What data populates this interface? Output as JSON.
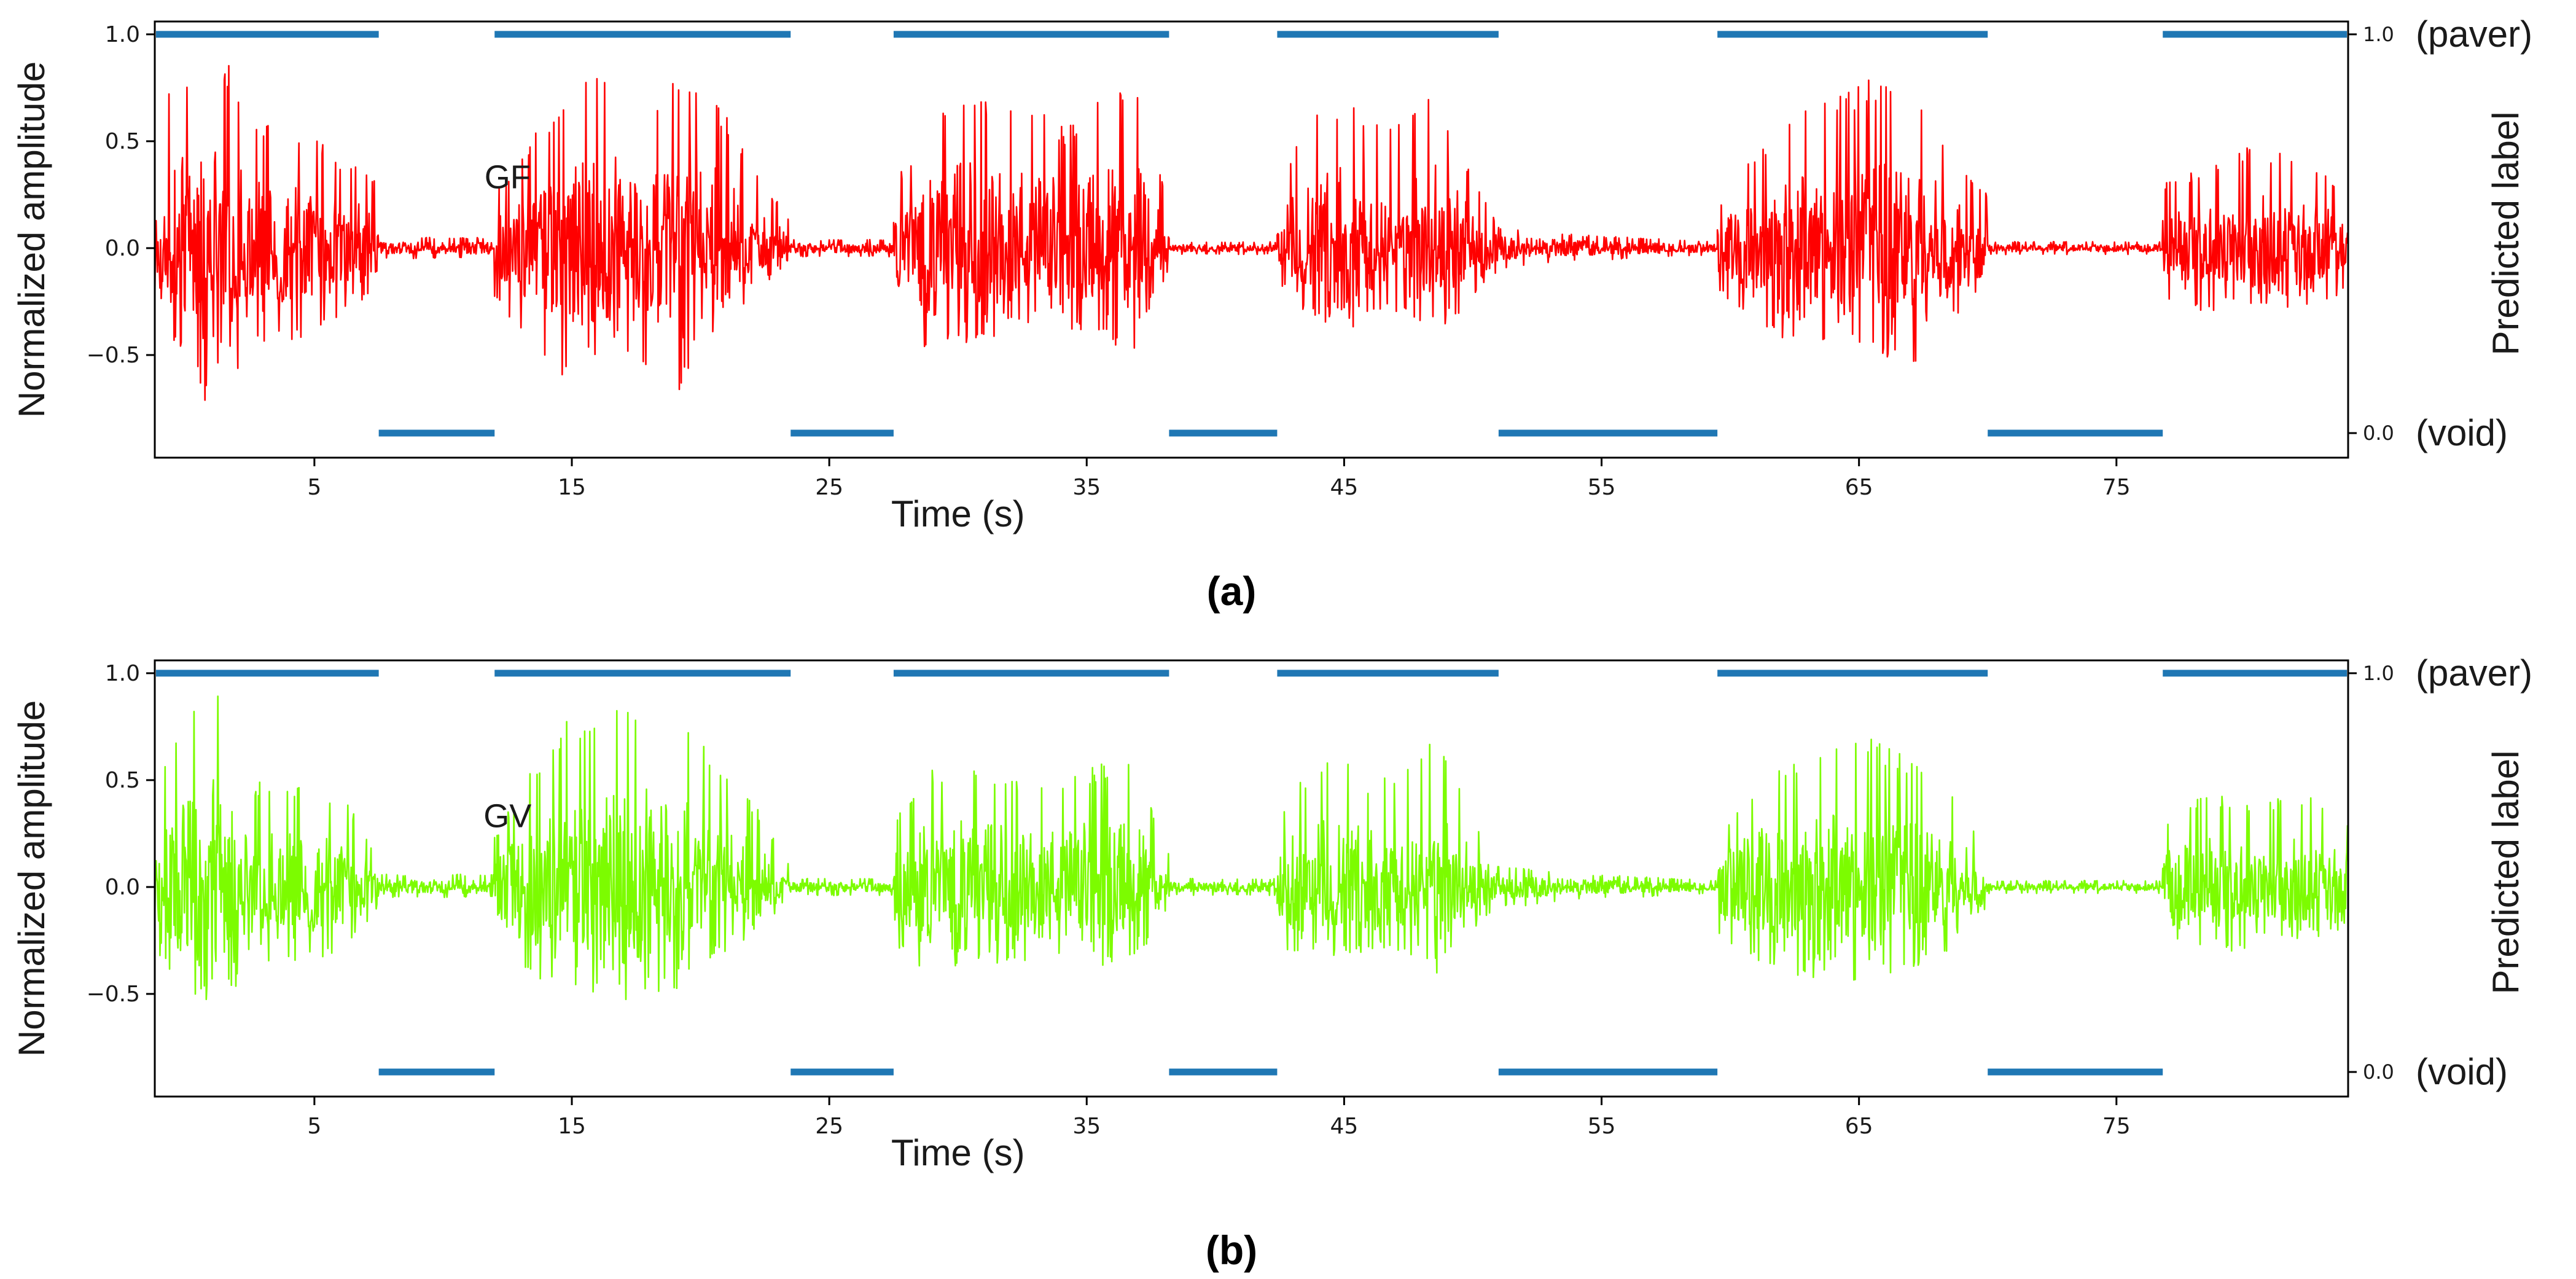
{
  "chart_data": [
    {
      "type": "line",
      "panel_caption": "(a)",
      "annotation": "GF",
      "xlabel": "Time (s)",
      "ylabel": "Normalized amplitude",
      "ylabel_right": "Predicted label",
      "xlim": [
        -1.2,
        84.0
      ],
      "ylim": [
        -0.98,
        1.06
      ],
      "xticks": [
        5,
        15,
        25,
        35,
        45,
        55,
        65,
        75
      ],
      "xtick_labels": [
        "5",
        "15",
        "25",
        "35",
        "45",
        "55",
        "65",
        "75"
      ],
      "yticks": [
        -0.5,
        0.0,
        0.5,
        1.0
      ],
      "ytick_labels": [
        "−0.5",
        "0.0",
        "0.5",
        "1.0"
      ],
      "right_ticks": [
        {
          "value": 1.0,
          "label": "1.0",
          "word": "(paver)"
        },
        {
          "value": 0.0,
          "label": "0.0",
          "word": "(void)"
        }
      ],
      "series": [
        {
          "kind": "signal",
          "color": "#ff0000",
          "envelope": [
            {
              "t": [
                -1.2,
                7.5
              ],
              "up": [
                0.66,
                0.82,
                0.98,
                0.6,
                0.55,
                0.52,
                0.4,
                0.35
              ],
              "dn": [
                -0.32,
                -0.52,
                -0.86,
                -0.48,
                -0.45,
                -0.4,
                -0.3,
                -0.2
              ]
            },
            {
              "t": [
                7.5,
                12.0
              ],
              "up": [
                0.05
              ],
              "dn": [
                -0.05
              ]
            },
            {
              "t": [
                12.0,
                23.5
              ],
              "up": [
                0.25,
                0.52,
                0.76,
                0.83,
                0.62,
                0.85,
                0.7,
                0.4,
                0.12
              ],
              "dn": [
                -0.25,
                -0.48,
                -0.62,
                -0.45,
                -0.57,
                -0.67,
                -0.3,
                -0.18,
                -0.05
              ]
            },
            {
              "t": [
                23.5,
                27.5
              ],
              "up": [
                0.04
              ],
              "dn": [
                -0.04
              ]
            },
            {
              "t": [
                27.5,
                38.2
              ],
              "up": [
                0.3,
                0.58,
                0.77,
                0.7,
                0.7,
                0.56,
                0.7,
                0.76,
                0.2
              ],
              "dn": [
                -0.3,
                -0.5,
                -0.45,
                -0.42,
                -0.4,
                -0.38,
                -0.45,
                -0.47,
                -0.1
              ]
            },
            {
              "t": [
                38.2,
                42.4
              ],
              "up": [
                0.03
              ],
              "dn": [
                -0.03
              ]
            },
            {
              "t": [
                42.4,
                51.0
              ],
              "up": [
                0.3,
                0.59,
                0.72,
                0.6,
                0.58,
                0.75,
                0.4,
                0.1
              ],
              "dn": [
                -0.22,
                -0.32,
                -0.3,
                -0.3,
                -0.28,
                -0.44,
                -0.28,
                -0.1
              ]
            },
            {
              "t": [
                51.0,
                59.5
              ],
              "up": [
                0.1,
                0.08,
                0.06,
                0.05,
                0.04,
                0.03
              ],
              "dn": [
                -0.1,
                -0.08,
                -0.06,
                -0.05,
                -0.04,
                -0.03
              ]
            },
            {
              "t": [
                59.5,
                70.0
              ],
              "up": [
                0.2,
                0.45,
                0.63,
                0.7,
                0.8,
                0.72,
                0.5,
                0.25
              ],
              "dn": [
                -0.2,
                -0.37,
                -0.48,
                -0.45,
                -0.5,
                -0.57,
                -0.35,
                -0.15
              ]
            },
            {
              "t": [
                70.0,
                76.8
              ],
              "up": [
                0.03
              ],
              "dn": [
                -0.03
              ]
            },
            {
              "t": [
                76.8,
                84.0
              ],
              "up": [
                0.3,
                0.4,
                0.5,
                0.4,
                0.3
              ],
              "dn": [
                -0.25,
                -0.3,
                -0.35,
                -0.3,
                -0.2
              ]
            }
          ]
        },
        {
          "kind": "predicted_label",
          "color": "#1f77b4",
          "segments": [
            {
              "start": -1.2,
              "end": 7.5,
              "label": 1
            },
            {
              "start": 7.5,
              "end": 12.0,
              "label": 0
            },
            {
              "start": 12.0,
              "end": 23.5,
              "label": 1
            },
            {
              "start": 23.5,
              "end": 27.5,
              "label": 0
            },
            {
              "start": 27.5,
              "end": 38.2,
              "label": 1
            },
            {
              "start": 38.2,
              "end": 42.4,
              "label": 0
            },
            {
              "start": 42.4,
              "end": 51.0,
              "label": 1
            },
            {
              "start": 51.0,
              "end": 59.5,
              "label": 0
            },
            {
              "start": 59.5,
              "end": 70.0,
              "label": 1
            },
            {
              "start": 70.0,
              "end": 76.8,
              "label": 0
            },
            {
              "start": 76.8,
              "end": 84.0,
              "label": 1
            }
          ]
        }
      ]
    },
    {
      "type": "line",
      "panel_caption": "(b)",
      "annotation": "GV",
      "xlabel": "Time (s)",
      "ylabel": "Normalized amplitude",
      "ylabel_right": "Predicted label",
      "xlim": [
        -1.2,
        84.0
      ],
      "ylim": [
        -0.98,
        1.06
      ],
      "xticks": [
        5,
        15,
        25,
        35,
        45,
        55,
        65,
        75
      ],
      "xtick_labels": [
        "5",
        "15",
        "25",
        "35",
        "45",
        "55",
        "65",
        "75"
      ],
      "yticks": [
        -0.5,
        0.0,
        0.5,
        1.0
      ],
      "ytick_labels": [
        "−0.5",
        "0.0",
        "0.5",
        "1.0"
      ],
      "right_ticks": [
        {
          "value": 1.0,
          "label": "1.0",
          "word": "(paver)"
        },
        {
          "value": 0.0,
          "label": "0.0",
          "word": "(void)"
        }
      ],
      "series": [
        {
          "kind": "signal",
          "color": "#7cfc00",
          "envelope": [
            {
              "t": [
                -1.2,
                7.5
              ],
              "up": [
                0.55,
                0.78,
                0.98,
                0.5,
                0.48,
                0.45,
                0.4,
                0.15
              ],
              "dn": [
                -0.3,
                -0.52,
                -0.54,
                -0.4,
                -0.38,
                -0.35,
                -0.28,
                -0.1
              ]
            },
            {
              "t": [
                7.5,
                12.0
              ],
              "up": [
                0.06
              ],
              "dn": [
                -0.05
              ]
            },
            {
              "t": [
                12.0,
                23.5
              ],
              "up": [
                0.25,
                0.55,
                0.8,
                0.85,
                0.83,
                0.86,
                0.6,
                0.4,
                0.1
              ],
              "dn": [
                -0.25,
                -0.45,
                -0.48,
                -0.5,
                -0.55,
                -0.5,
                -0.3,
                -0.2,
                -0.05
              ]
            },
            {
              "t": [
                23.5,
                27.5
              ],
              "up": [
                0.04
              ],
              "dn": [
                -0.04
              ]
            },
            {
              "t": [
                27.5,
                38.2
              ],
              "up": [
                0.3,
                0.55,
                0.58,
                0.55,
                0.5,
                0.52,
                0.58,
                0.58,
                0.15
              ],
              "dn": [
                -0.28,
                -0.4,
                -0.38,
                -0.36,
                -0.35,
                -0.36,
                -0.38,
                -0.37,
                -0.08
              ]
            },
            {
              "t": [
                38.2,
                42.4
              ],
              "up": [
                0.04
              ],
              "dn": [
                -0.04
              ]
            },
            {
              "t": [
                42.4,
                51.0
              ],
              "up": [
                0.35,
                0.56,
                0.6,
                0.5,
                0.55,
                0.7,
                0.4,
                0.1
              ],
              "dn": [
                -0.25,
                -0.4,
                -0.32,
                -0.3,
                -0.3,
                -0.42,
                -0.25,
                -0.08
              ]
            },
            {
              "t": [
                51.0,
                59.5
              ],
              "up": [
                0.1,
                0.08,
                0.06,
                0.05,
                0.04,
                0.03
              ],
              "dn": [
                -0.1,
                -0.08,
                -0.06,
                -0.05,
                -0.04,
                -0.03
              ]
            },
            {
              "t": [
                59.5,
                70.0
              ],
              "up": [
                0.25,
                0.48,
                0.6,
                0.65,
                0.7,
                0.6,
                0.45,
                0.2
              ],
              "dn": [
                -0.22,
                -0.35,
                -0.45,
                -0.45,
                -0.48,
                -0.4,
                -0.3,
                -0.1
              ]
            },
            {
              "t": [
                70.0,
                76.8
              ],
              "up": [
                0.03
              ],
              "dn": [
                -0.03
              ]
            },
            {
              "t": [
                76.8,
                84.0
              ],
              "up": [
                0.3,
                0.45,
                0.4,
                0.45,
                0.3
              ],
              "dn": [
                -0.25,
                -0.3,
                -0.3,
                -0.3,
                -0.2
              ]
            }
          ]
        },
        {
          "kind": "predicted_label",
          "color": "#1f77b4",
          "segments": [
            {
              "start": -1.2,
              "end": 7.5,
              "label": 1
            },
            {
              "start": 7.5,
              "end": 12.0,
              "label": 0
            },
            {
              "start": 12.0,
              "end": 23.5,
              "label": 1
            },
            {
              "start": 23.5,
              "end": 27.5,
              "label": 0
            },
            {
              "start": 27.5,
              "end": 38.2,
              "label": 1
            },
            {
              "start": 38.2,
              "end": 42.4,
              "label": 0
            },
            {
              "start": 42.4,
              "end": 51.0,
              "label": 1
            },
            {
              "start": 51.0,
              "end": 59.5,
              "label": 0
            },
            {
              "start": 59.5,
              "end": 70.0,
              "label": 1
            },
            {
              "start": 70.0,
              "end": 76.8,
              "label": 0
            },
            {
              "start": 76.8,
              "end": 84.0,
              "label": 1
            }
          ]
        }
      ]
    }
  ]
}
